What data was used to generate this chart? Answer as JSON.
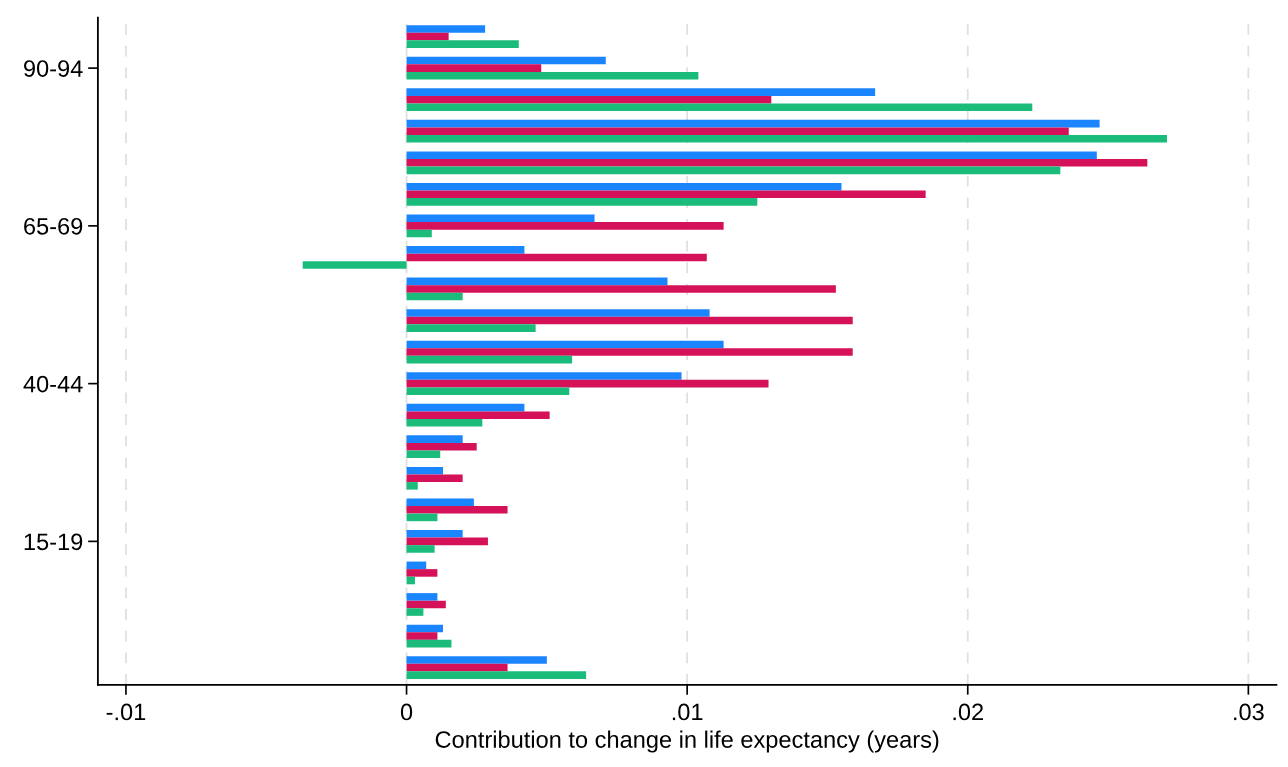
{
  "chart_data": {
    "type": "bar",
    "orientation": "horizontal",
    "xlabel": "Contribution to change in life expectancy (years)",
    "categories": [
      null,
      "90-94",
      null,
      null,
      null,
      null,
      "65-69",
      null,
      null,
      null,
      null,
      "40-44",
      null,
      null,
      null,
      null,
      "15-19",
      null,
      null,
      null,
      null
    ],
    "series": [
      {
        "color": "#1a85ff",
        "values": [
          0.0028,
          0.0071,
          0.0167,
          0.0247,
          0.0246,
          0.0155,
          0.0067,
          0.0042,
          0.0093,
          0.0108,
          0.0113,
          0.0098,
          0.0042,
          0.002,
          0.0013,
          0.0024,
          0.002,
          0.0007,
          0.0011,
          0.0013,
          0.005
        ]
      },
      {
        "color": "#d41159",
        "values": [
          0.0015,
          0.0048,
          0.013,
          0.0236,
          0.0264,
          0.0185,
          0.0113,
          0.0107,
          0.0153,
          0.0159,
          0.0159,
          0.0129,
          0.0051,
          0.0025,
          0.002,
          0.0036,
          0.0029,
          0.0011,
          0.0014,
          0.0011,
          0.0036
        ]
      },
      {
        "color": "#1bbc7b",
        "values": [
          0.004,
          0.0104,
          0.0223,
          0.0271,
          0.0233,
          0.0125,
          0.0009,
          -0.0037,
          0.002,
          0.0046,
          0.0059,
          0.0058,
          0.0027,
          0.0012,
          0.0004,
          0.0011,
          0.001,
          0.0003,
          0.0006,
          0.0016,
          0.0064
        ]
      }
    ],
    "xlim": [
      -0.011,
      0.031
    ],
    "xticks": [
      {
        "value": -0.01,
        "label": "-.01"
      },
      0,
      {
        "value": 0.01,
        "label": ".01"
      },
      {
        "value": 0.02,
        "label": ".02"
      },
      {
        "value": 0.03,
        "label": ".03"
      }
    ],
    "grid": "x",
    "legend": false
  }
}
